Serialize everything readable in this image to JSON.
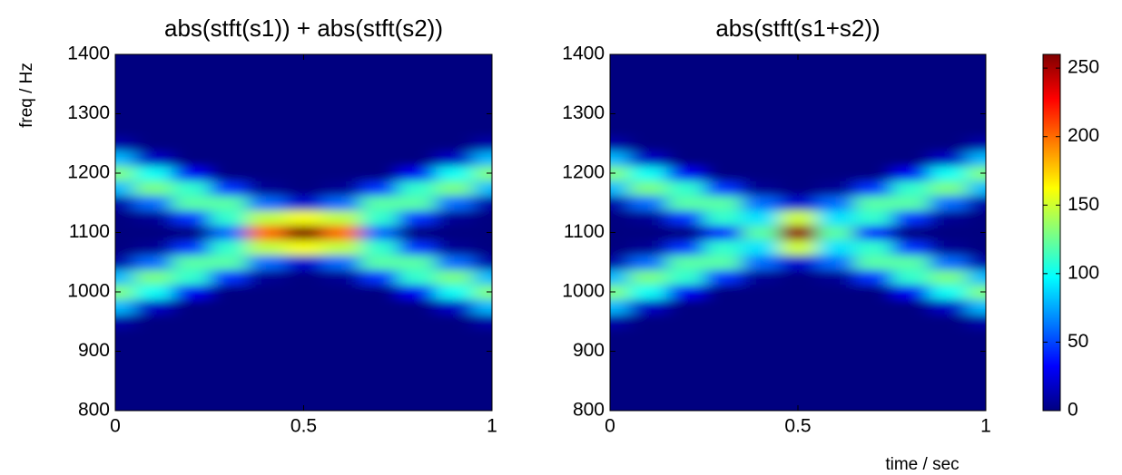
{
  "chart_data": [
    {
      "type": "heatmap",
      "title": "abs(stft(s1)) + abs(stft(s2))",
      "ylabel": "freq / Hz",
      "colormap": "jet",
      "clim": [
        0,
        260
      ],
      "xlim": [
        0,
        1
      ],
      "xticks": [
        0,
        0.5,
        1
      ],
      "ylim": [
        800,
        1400
      ],
      "yticks": [
        800,
        900,
        1000,
        1100,
        1200,
        1300,
        1400
      ],
      "x": [
        0,
        0.1,
        0.2,
        0.3,
        0.4,
        0.5,
        0.6,
        0.7,
        0.8,
        0.9,
        1
      ],
      "y": [
        800,
        825,
        850,
        875,
        900,
        925,
        950,
        975,
        1000,
        1025,
        1050,
        1075,
        1100,
        1125,
        1150,
        1175,
        1200,
        1225,
        1250,
        1275,
        1300,
        1325,
        1350,
        1375,
        1400
      ],
      "z": [
        [
          0,
          0,
          0,
          0,
          0,
          0,
          0,
          0,
          0,
          0,
          0
        ],
        [
          0,
          0,
          0,
          0,
          0,
          0,
          0,
          0,
          0,
          0,
          0
        ],
        [
          0,
          0,
          0,
          0,
          0,
          0,
          0,
          0,
          0,
          0,
          0
        ],
        [
          0,
          0,
          0,
          0,
          0,
          0,
          0,
          0,
          0,
          0,
          0
        ],
        [
          0,
          0,
          0,
          0,
          0,
          0,
          0,
          0,
          0,
          0,
          0
        ],
        [
          0,
          0,
          0,
          0,
          0,
          0,
          0,
          0,
          0,
          0,
          0
        ],
        [
          10,
          0,
          0,
          0,
          0,
          0,
          0,
          0,
          0,
          0,
          10
        ],
        [
          80,
          18,
          0,
          0,
          0,
          0,
          0,
          0,
          0,
          18,
          80
        ],
        [
          130,
          100,
          30,
          0,
          0,
          0,
          0,
          0,
          30,
          100,
          130
        ],
        [
          80,
          128,
          110,
          45,
          5,
          0,
          5,
          45,
          110,
          128,
          80
        ],
        [
          10,
          60,
          120,
          120,
          60,
          20,
          60,
          120,
          120,
          60,
          10
        ],
        [
          0,
          5,
          45,
          110,
          146,
          160,
          146,
          110,
          45,
          5,
          0
        ],
        [
          0,
          0,
          0,
          60,
          200,
          260,
          200,
          60,
          0,
          0,
          0
        ],
        [
          0,
          5,
          45,
          110,
          146,
          160,
          146,
          110,
          45,
          5,
          0
        ],
        [
          10,
          60,
          120,
          120,
          60,
          20,
          60,
          120,
          120,
          60,
          10
        ],
        [
          80,
          128,
          110,
          45,
          5,
          0,
          5,
          45,
          110,
          128,
          80
        ],
        [
          130,
          100,
          30,
          0,
          0,
          0,
          0,
          0,
          30,
          100,
          130
        ],
        [
          80,
          18,
          0,
          0,
          0,
          0,
          0,
          0,
          0,
          18,
          80
        ],
        [
          10,
          0,
          0,
          0,
          0,
          0,
          0,
          0,
          0,
          0,
          10
        ],
        [
          0,
          0,
          0,
          0,
          0,
          0,
          0,
          0,
          0,
          0,
          0
        ],
        [
          0,
          0,
          0,
          0,
          0,
          0,
          0,
          0,
          0,
          0,
          0
        ],
        [
          0,
          0,
          0,
          0,
          0,
          0,
          0,
          0,
          0,
          0,
          0
        ],
        [
          0,
          0,
          0,
          0,
          0,
          0,
          0,
          0,
          0,
          0,
          0
        ],
        [
          0,
          0,
          0,
          0,
          0,
          0,
          0,
          0,
          0,
          0,
          0
        ],
        [
          0,
          0,
          0,
          0,
          0,
          0,
          0,
          0,
          0,
          0,
          0
        ]
      ]
    },
    {
      "type": "heatmap",
      "title": "abs(stft(s1+s2))",
      "xlabel": "time / sec",
      "colormap": "jet",
      "clim": [
        0,
        260
      ],
      "colorbar_ticks": [
        0,
        50,
        100,
        150,
        200,
        250
      ],
      "xlim": [
        0,
        1
      ],
      "xticks": [
        0,
        0.5,
        1
      ],
      "ylim": [
        800,
        1400
      ],
      "yticks": [
        800,
        900,
        1000,
        1100,
        1200,
        1300,
        1400
      ],
      "x": [
        0,
        0.1,
        0.2,
        0.3,
        0.4,
        0.5,
        0.6,
        0.7,
        0.8,
        0.9,
        1
      ],
      "y": [
        800,
        825,
        850,
        875,
        900,
        925,
        950,
        975,
        1000,
        1025,
        1050,
        1075,
        1100,
        1125,
        1150,
        1175,
        1200,
        1225,
        1250,
        1275,
        1300,
        1325,
        1350,
        1375,
        1400
      ],
      "z": [
        [
          0,
          0,
          0,
          0,
          0,
          0,
          0,
          0,
          0,
          0,
          0
        ],
        [
          0,
          0,
          0,
          0,
          0,
          0,
          0,
          0,
          0,
          0,
          0
        ],
        [
          0,
          0,
          0,
          0,
          0,
          0,
          0,
          0,
          0,
          0,
          0
        ],
        [
          0,
          0,
          0,
          0,
          0,
          0,
          0,
          0,
          0,
          0,
          0
        ],
        [
          0,
          0,
          0,
          0,
          0,
          0,
          0,
          0,
          0,
          0,
          0
        ],
        [
          0,
          0,
          0,
          0,
          0,
          0,
          0,
          0,
          0,
          0,
          0
        ],
        [
          10,
          0,
          0,
          0,
          0,
          0,
          0,
          0,
          0,
          0,
          10
        ],
        [
          80,
          18,
          0,
          0,
          0,
          0,
          0,
          0,
          0,
          18,
          80
        ],
        [
          130,
          100,
          30,
          0,
          0,
          0,
          0,
          0,
          30,
          100,
          130
        ],
        [
          80,
          128,
          110,
          45,
          5,
          0,
          5,
          45,
          110,
          128,
          80
        ],
        [
          10,
          60,
          120,
          120,
          60,
          20,
          60,
          120,
          120,
          60,
          10
        ],
        [
          0,
          5,
          45,
          110,
          90,
          150,
          90,
          110,
          45,
          5,
          0
        ],
        [
          0,
          0,
          0,
          40,
          120,
          255,
          120,
          40,
          0,
          0,
          0
        ],
        [
          0,
          5,
          45,
          110,
          90,
          150,
          90,
          110,
          45,
          5,
          0
        ],
        [
          10,
          60,
          120,
          120,
          60,
          20,
          60,
          120,
          120,
          60,
          10
        ],
        [
          80,
          128,
          110,
          45,
          5,
          0,
          5,
          45,
          110,
          128,
          80
        ],
        [
          130,
          100,
          30,
          0,
          0,
          0,
          0,
          0,
          30,
          100,
          130
        ],
        [
          80,
          18,
          0,
          0,
          0,
          0,
          0,
          0,
          0,
          18,
          80
        ],
        [
          10,
          0,
          0,
          0,
          0,
          0,
          0,
          0,
          0,
          0,
          10
        ],
        [
          0,
          0,
          0,
          0,
          0,
          0,
          0,
          0,
          0,
          0,
          0
        ],
        [
          0,
          0,
          0,
          0,
          0,
          0,
          0,
          0,
          0,
          0,
          0
        ],
        [
          0,
          0,
          0,
          0,
          0,
          0,
          0,
          0,
          0,
          0,
          0
        ],
        [
          0,
          0,
          0,
          0,
          0,
          0,
          0,
          0,
          0,
          0,
          0
        ],
        [
          0,
          0,
          0,
          0,
          0,
          0,
          0,
          0,
          0,
          0,
          0
        ],
        [
          0,
          0,
          0,
          0,
          0,
          0,
          0,
          0,
          0,
          0,
          0
        ]
      ]
    }
  ]
}
